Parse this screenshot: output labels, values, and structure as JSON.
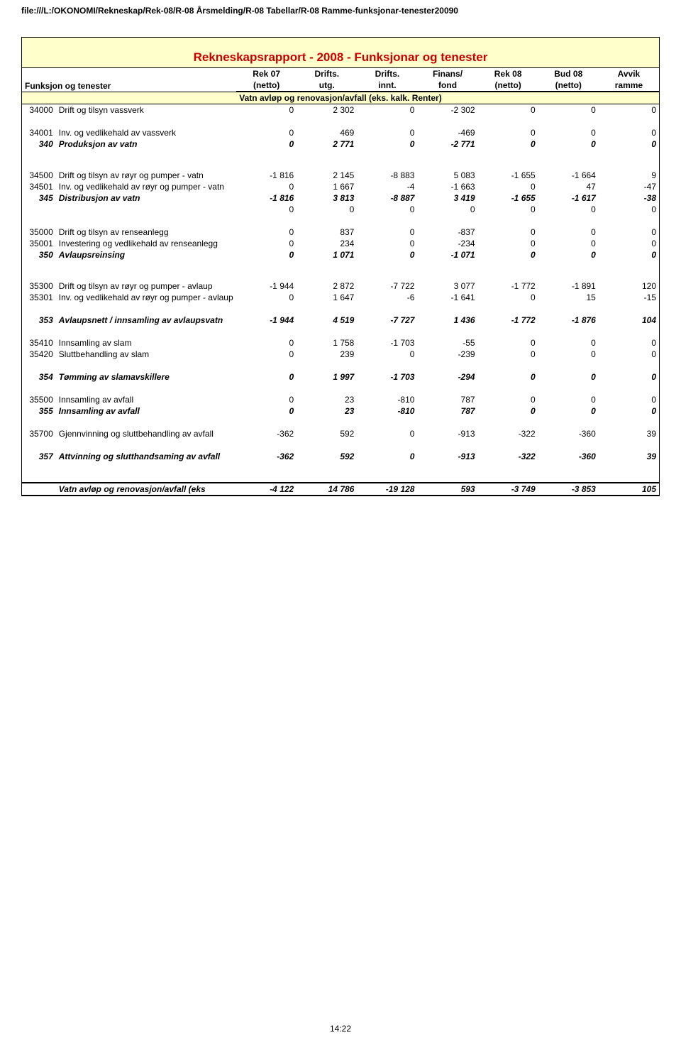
{
  "path": "file:///L:/OKONOMI/Rekneskap/Rek-08/R-08 Årsmelding/R-08 Tabellar/R-08 Ramme-funksjonar-tenester20090",
  "title": "Rekneskapsrapport - 2008 - Funksjonar og tenester",
  "header": {
    "label_top": "Funksjon og tenester",
    "cols_top": [
      "Rek 07",
      "Drifts.",
      "Drifts.",
      "Finans/",
      "Rek 08",
      "Bud 08",
      "Avvik"
    ],
    "cols_bottom": [
      "(netto)",
      "utg.",
      "innt.",
      "fond",
      "(netto)",
      "(netto)",
      "ramme"
    ]
  },
  "section": "Vatn avløp og renovasjon/avfall (eks. kalk. Renter)",
  "rows": [
    {
      "code": "34000",
      "label": "Drift og tilsyn vassverk",
      "v": [
        "0",
        "2 302",
        "0",
        "-2 302",
        "0",
        "0",
        "0"
      ]
    },
    {
      "sep": true
    },
    {
      "code": "34001",
      "label": "Inv. og vedlikehald av vassverk",
      "v": [
        "0",
        "469",
        "0",
        "-469",
        "0",
        "0",
        "0"
      ]
    },
    {
      "code": "340",
      "label": "Produksjon av vatn",
      "v": [
        "0",
        "2 771",
        "0",
        "-2 771",
        "0",
        "0",
        "0"
      ],
      "italic": true
    },
    {
      "sep": "lg"
    },
    {
      "code": "34500",
      "label": "Drift og tilsyn av røyr og pumper - vatn",
      "wrap": true,
      "v": [
        "-1 816",
        "2 145",
        "-8 883",
        "5 083",
        "-1 655",
        "-1 664",
        "9"
      ]
    },
    {
      "code": "34501",
      "label": "Inv. og vedlikehald av røyr og pumper - vatn",
      "wrap": true,
      "v": [
        "0",
        "1 667",
        "-4",
        "-1 663",
        "0",
        "47",
        "-47"
      ]
    },
    {
      "code": "345",
      "label": "Distribusjon av vatn",
      "v": [
        "-1 816",
        "3 813",
        "-8 887",
        "3 419",
        "-1 655",
        "-1 617",
        "-38"
      ],
      "italic": true
    },
    {
      "code": "",
      "label": "",
      "v": [
        "0",
        "0",
        "0",
        "0",
        "0",
        "0",
        "0"
      ]
    },
    {
      "sep": true
    },
    {
      "code": "35000",
      "label": "Drift og tilsyn av renseanlegg",
      "v": [
        "0",
        "837",
        "0",
        "-837",
        "0",
        "0",
        "0"
      ]
    },
    {
      "code": "35001",
      "label": "Investering og vedlikehald av renseanlegg",
      "wrap": true,
      "v": [
        "0",
        "234",
        "0",
        "-234",
        "0",
        "0",
        "0"
      ]
    },
    {
      "code": "350",
      "label": "Avlaupsreinsing",
      "v": [
        "0",
        "1 071",
        "0",
        "-1 071",
        "0",
        "0",
        "0"
      ],
      "italic": true
    },
    {
      "sep": "lg"
    },
    {
      "code": "35300",
      "label": "Drift og tilsyn av røyr og pumper - avlaup",
      "wrap": true,
      "v": [
        "-1 944",
        "2 872",
        "-7 722",
        "3 077",
        "-1 772",
        "-1 891",
        "120"
      ]
    },
    {
      "code": "35301",
      "label": "Inv. og vedlikehald av røyr og pumper - avlaup",
      "wrap": true,
      "v": [
        "0",
        "1 647",
        "-6",
        "-1 641",
        "0",
        "15",
        "-15"
      ]
    },
    {
      "sep": true
    },
    {
      "code": "353",
      "label": "Avlaupsnett / innsamling av avlaupsvatn",
      "wrap": true,
      "v": [
        "-1 944",
        "4 519",
        "-7 727",
        "1 436",
        "-1 772",
        "-1 876",
        "104"
      ],
      "italic": true
    },
    {
      "sep": true
    },
    {
      "code": "35410",
      "label": "Innsamling av slam",
      "v": [
        "0",
        "1 758",
        "-1 703",
        "-55",
        "0",
        "0",
        "0"
      ]
    },
    {
      "code": "35420",
      "label": "Sluttbehandling av slam",
      "v": [
        "0",
        "239",
        "0",
        "-239",
        "0",
        "0",
        "0"
      ]
    },
    {
      "sep": true
    },
    {
      "code": "354",
      "label": "Tømming av slamavskillere",
      "v": [
        "0",
        "1 997",
        "-1 703",
        "-294",
        "0",
        "0",
        "0"
      ],
      "italic": true
    },
    {
      "sep": true
    },
    {
      "code": "35500",
      "label": "Innsamling av avfall",
      "v": [
        "0",
        "23",
        "-810",
        "787",
        "0",
        "0",
        "0"
      ]
    },
    {
      "code": "355",
      "label": "Innsamling av avfall",
      "v": [
        "0",
        "23",
        "-810",
        "787",
        "0",
        "0",
        "0"
      ],
      "italic": true
    },
    {
      "sep": true
    },
    {
      "code": "35700",
      "label": "Gjennvinning og sluttbehandling av avfall",
      "wrap": true,
      "v": [
        "-362",
        "592",
        "0",
        "-913",
        "-322",
        "-360",
        "39"
      ]
    },
    {
      "sep": true
    },
    {
      "code": "357",
      "label": "Attvinning og slutthandsaming av avfall",
      "wrap": true,
      "v": [
        "-362",
        "592",
        "0",
        "-913",
        "-322",
        "-360",
        "39"
      ],
      "italic": true
    },
    {
      "sep": "lg"
    }
  ],
  "total": {
    "label": "Vatn avløp og renovasjon/avfall (eks",
    "v": [
      "-4 122",
      "14 786",
      "-19 128",
      "593",
      "-3 749",
      "-3 853",
      "105"
    ]
  },
  "footer": "14:22"
}
